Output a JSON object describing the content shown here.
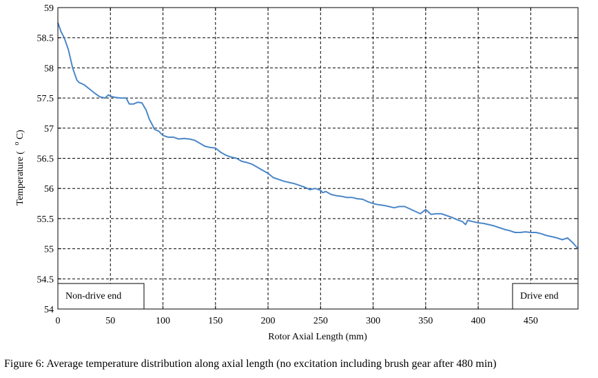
{
  "chart_data": {
    "type": "line",
    "title": "",
    "xlabel": "Rotor Axial Length (mm)",
    "ylabel_main": "Temperature (",
    "ylabel_sup": "o",
    "ylabel_end": "C)",
    "xlim": [
      0,
      495
    ],
    "ylim": [
      54,
      59
    ],
    "xticks": [
      0,
      50,
      100,
      150,
      200,
      250,
      300,
      350,
      400,
      450
    ],
    "yticks": [
      54,
      54.5,
      55,
      55.5,
      56,
      56.5,
      57,
      57.5,
      58,
      58.5,
      59
    ],
    "xtick_labels": [
      "0",
      "50",
      "100",
      "150",
      "200",
      "250",
      "300",
      "350",
      "400",
      "450"
    ],
    "ytick_labels": [
      "54",
      "54.5",
      "55",
      "55.5",
      "56",
      "56.5",
      "57",
      "57.5",
      "58",
      "58.5",
      "59"
    ],
    "grid": true,
    "grid_style": "dashed",
    "line_color": "#4a86c8",
    "annotations": [
      {
        "text": "Non-drive end",
        "corner": "bottom-left"
      },
      {
        "text": "Drive end",
        "corner": "bottom-right"
      }
    ],
    "series": [
      {
        "x": [
          0,
          3,
          6,
          10,
          14,
          18,
          20,
          25,
          30,
          35,
          40,
          45,
          48,
          52,
          55,
          60,
          65,
          68,
          72,
          76,
          80,
          84,
          87,
          90,
          92,
          96,
          100,
          105,
          110,
          115,
          120,
          125,
          130,
          135,
          140,
          145,
          150,
          155,
          160,
          165,
          170,
          175,
          180,
          185,
          190,
          195,
          200,
          205,
          210,
          215,
          220,
          225,
          230,
          235,
          240,
          245,
          250,
          252,
          255,
          260,
          265,
          270,
          275,
          280,
          285,
          290,
          295,
          300,
          305,
          310,
          315,
          320,
          325,
          330,
          335,
          340,
          345,
          350,
          352,
          355,
          360,
          365,
          370,
          375,
          380,
          385,
          388,
          390,
          395,
          400,
          405,
          410,
          415,
          420,
          425,
          430,
          435,
          440,
          445,
          450,
          455,
          460,
          465,
          470,
          475,
          480,
          485,
          490,
          495
        ],
        "y": [
          58.75,
          58.6,
          58.5,
          58.3,
          58.0,
          57.8,
          57.76,
          57.72,
          57.65,
          57.58,
          57.52,
          57.5,
          57.55,
          57.52,
          57.51,
          57.5,
          57.5,
          57.4,
          57.4,
          57.43,
          57.42,
          57.3,
          57.15,
          57.05,
          56.98,
          56.95,
          56.88,
          56.85,
          56.85,
          56.82,
          56.83,
          56.82,
          56.8,
          56.75,
          56.7,
          56.68,
          56.67,
          56.6,
          56.55,
          56.52,
          56.5,
          56.45,
          56.43,
          56.4,
          56.35,
          56.3,
          56.25,
          56.18,
          56.15,
          56.12,
          56.1,
          56.08,
          56.05,
          56.02,
          55.98,
          56.0,
          55.97,
          55.93,
          55.95,
          55.9,
          55.88,
          55.87,
          55.85,
          55.85,
          55.83,
          55.82,
          55.78,
          55.75,
          55.73,
          55.72,
          55.7,
          55.68,
          55.7,
          55.7,
          55.66,
          55.62,
          55.58,
          55.65,
          55.62,
          55.57,
          55.58,
          55.58,
          55.55,
          55.52,
          55.48,
          55.45,
          55.4,
          55.47,
          55.45,
          55.43,
          55.42,
          55.4,
          55.38,
          55.35,
          55.32,
          55.3,
          55.27,
          55.27,
          55.28,
          55.27,
          55.27,
          55.25,
          55.22,
          55.2,
          55.18,
          55.15,
          55.18,
          55.1,
          55.0
        ]
      }
    ]
  },
  "caption": "Figure 6: Average temperature distribution along axial length (no excitation including brush gear after 480 min)"
}
